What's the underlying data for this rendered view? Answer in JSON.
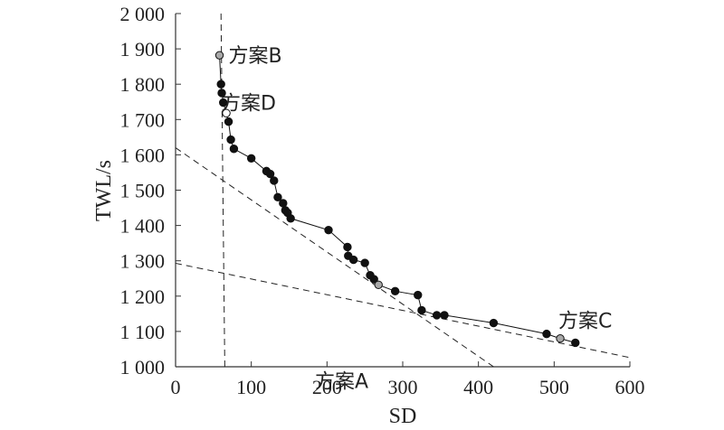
{
  "chart_data": {
    "type": "scatter",
    "xlabel": "SD",
    "ylabel": "TWL/s",
    "xlim": [
      0,
      600
    ],
    "ylim": [
      1000,
      2000
    ],
    "xticks": [
      "0",
      "100",
      "200",
      "300",
      "400",
      "500",
      "600"
    ],
    "yticks": [
      "1 000",
      "1 100",
      "1 200",
      "1 300",
      "1 400",
      "1 500",
      "1 600",
      "1 700",
      "1 800",
      "1 900",
      "2 000"
    ],
    "grid": false,
    "pareto_front": [
      [
        58,
        1882
      ],
      [
        60,
        1800
      ],
      [
        61,
        1775
      ],
      [
        63,
        1748
      ],
      [
        67,
        1718
      ],
      [
        70,
        1694
      ],
      [
        73,
        1643
      ],
      [
        77,
        1617
      ],
      [
        100,
        1590
      ],
      [
        120,
        1554
      ],
      [
        125,
        1546
      ],
      [
        130,
        1527
      ],
      [
        135,
        1480
      ],
      [
        142,
        1463
      ],
      [
        145,
        1443
      ],
      [
        148,
        1436
      ],
      [
        152,
        1420
      ],
      [
        202,
        1387
      ],
      [
        227,
        1339
      ],
      [
        228,
        1314
      ],
      [
        235,
        1303
      ],
      [
        250,
        1294
      ],
      [
        257,
        1259
      ],
      [
        262,
        1248
      ],
      [
        268,
        1232
      ],
      [
        290,
        1214
      ],
      [
        320,
        1203
      ],
      [
        325,
        1160
      ],
      [
        345,
        1146
      ],
      [
        355,
        1146
      ],
      [
        420,
        1124
      ],
      [
        490,
        1093
      ],
      [
        508,
        1080
      ],
      [
        528,
        1068
      ]
    ],
    "highlighted": [
      {
        "label": "方案B",
        "x": 58,
        "y": 1882
      },
      {
        "label": "方案D",
        "x": 67,
        "y": 1718
      },
      {
        "label": "方案A",
        "x": 268,
        "y": 1232
      },
      {
        "label": "方案C",
        "x": 508,
        "y": 1080
      }
    ],
    "reference_lines": [
      {
        "from": [
          60,
          2000
        ],
        "to": [
          65,
          1000
        ]
      },
      {
        "from": [
          0,
          1620
        ],
        "to": [
          420,
          1000
        ]
      },
      {
        "from": [
          0,
          1293
        ],
        "to": [
          600,
          1026
        ]
      }
    ]
  }
}
